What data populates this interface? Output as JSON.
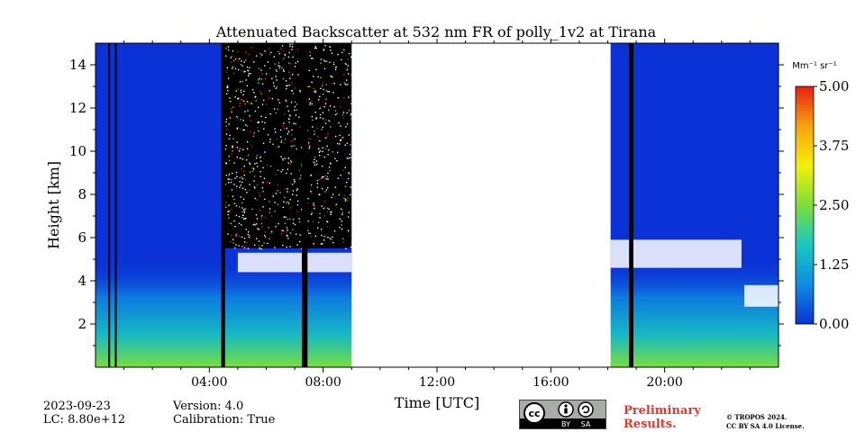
{
  "chart_data": {
    "type": "heatmap",
    "title": "Attenuated Backscatter at 532 nm FR of polly_1v2 at Tirana",
    "xlabel": "Time [UTC]",
    "ylabel": "Height [km]",
    "x_range_hours": [
      0,
      24
    ],
    "y_range_km": [
      0,
      15
    ],
    "x_ticks": [
      "04:00",
      "08:00",
      "12:00",
      "16:00",
      "20:00"
    ],
    "x_tick_hours": [
      4,
      8,
      12,
      16,
      20
    ],
    "y_ticks": [
      "2",
      "4",
      "6",
      "8",
      "10",
      "12",
      "14"
    ],
    "y_tick_values": [
      2,
      4,
      6,
      8,
      10,
      12,
      14
    ],
    "colorbar": {
      "unit_label": "Mm⁻¹ sr⁻¹",
      "range": [
        0.0,
        5.0
      ],
      "ticks": [
        "0.00",
        "1.25",
        "2.50",
        "3.75",
        "5.00"
      ],
      "tick_values": [
        0.0,
        1.25,
        2.5,
        3.75,
        5.0
      ],
      "colormap": [
        "#0a32d6",
        "#0d8de0",
        "#19c8c0",
        "#7adf3c",
        "#f4f007",
        "#f7a20c",
        "#e52012"
      ]
    },
    "no_data_interval_hours": [
      9.0,
      18.1
    ],
    "instrument_gaps_hours": [
      [
        0.45,
        0.5
      ],
      [
        0.68,
        0.73
      ],
      [
        4.42,
        4.55
      ],
      [
        7.25,
        7.45
      ],
      [
        18.75,
        18.9
      ]
    ],
    "cloud_layers": [
      {
        "start_h": 5.0,
        "end_h": 9.0,
        "base_km": 4.4,
        "top_km": 5.3
      },
      {
        "start_h": 18.1,
        "end_h": 22.7,
        "base_km": 4.6,
        "top_km": 5.9
      },
      {
        "start_h": 22.8,
        "end_h": 24.0,
        "base_km": 2.8,
        "top_km": 3.8
      }
    ],
    "grid": false
  },
  "footer": {
    "date": "2023-09-23",
    "lc": "LC: 8.80e+12",
    "version": "Version: 4.0",
    "calibration": "Calibration: True",
    "cc_by": "BY",
    "cc_sa": "SA",
    "cc_symbol": "cc",
    "preliminary_line1": "Preliminary",
    "preliminary_line2": "Results.",
    "copyright_line1": "© TROPOS 2024.",
    "copyright_line2": "CC BY SA 4.0 License."
  },
  "colors": {
    "preliminary": "#e8342e",
    "no_data": "#ffffff",
    "gap": "#000000"
  }
}
